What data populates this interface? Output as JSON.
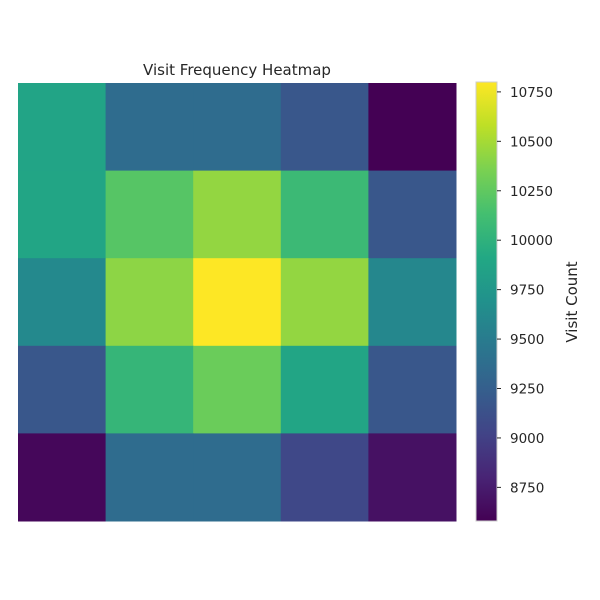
{
  "chart_data": {
    "type": "heatmap",
    "title": "Visit Frequency Heatmap",
    "xlabel": "",
    "ylabel": "",
    "colorbar_label": "Visit Count",
    "colormap": "viridis",
    "value_range": [
      8580,
      10800
    ],
    "colorbar_ticks": [
      8750,
      9000,
      9250,
      9500,
      9750,
      10000,
      10250,
      10500,
      10750
    ],
    "rows": [
      [
        9870,
        9360,
        9360,
        9180,
        8580
      ],
      [
        9880,
        10210,
        10440,
        10080,
        9180
      ],
      [
        9620,
        10420,
        10800,
        10440,
        9600
      ],
      [
        9180,
        10040,
        10290,
        9880,
        9180
      ],
      [
        8620,
        9360,
        9360,
        9060,
        8680
      ]
    ],
    "grid": false
  }
}
